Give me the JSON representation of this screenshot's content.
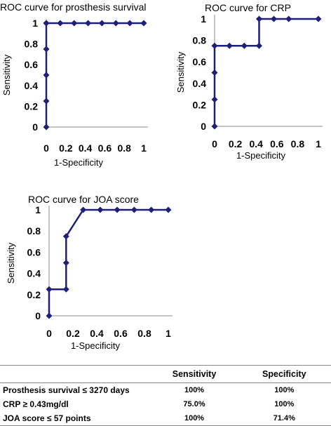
{
  "colors": {
    "series": "#1f1f7a",
    "axis": "#888888"
  },
  "chart_data": [
    {
      "type": "line",
      "title": "ROC curve for prosthesis survival",
      "xlabel": "1-Specificity",
      "ylabel": "Sensitivity",
      "xlim": [
        0,
        1
      ],
      "ylim": [
        0,
        1
      ],
      "xticks": [
        "0",
        "0.2",
        "0.4",
        "0.6",
        "0.8",
        "1"
      ],
      "yticks": [
        "0",
        "0.2",
        "0.4",
        "0.6",
        "0.8",
        "1"
      ],
      "grid": false,
      "series": [
        {
          "x": [
            0,
            0,
            0,
            0,
            0,
            0,
            0.143,
            0.286,
            0.429,
            0.571,
            0.714,
            0.857,
            1
          ],
          "y": [
            0,
            0.25,
            0.5,
            0.75,
            1,
            1,
            1,
            1,
            1,
            1,
            1,
            1,
            1
          ]
        }
      ]
    },
    {
      "type": "line",
      "title": "ROC curve for CRP",
      "xlabel": "1-Specificity",
      "ylabel": "Sensitivity",
      "xlim": [
        0,
        1
      ],
      "ylim": [
        0,
        1
      ],
      "xticks": [
        "0",
        "0.2",
        "0.4",
        "0.6",
        "0.8",
        "1"
      ],
      "yticks": [
        "0",
        "0.2",
        "0.4",
        "0.6",
        "0.8",
        "1"
      ],
      "grid": false,
      "series": [
        {
          "x": [
            0,
            0,
            0,
            0,
            0.143,
            0.286,
            0.429,
            0.429,
            0.571,
            0.714,
            1
          ],
          "y": [
            0,
            0.25,
            0.5,
            0.75,
            0.75,
            0.75,
            0.75,
            1,
            1,
            1,
            1
          ]
        }
      ]
    },
    {
      "type": "line",
      "title": "ROC curve for JOA score",
      "xlabel": "1-Specificity",
      "ylabel": "Sensitivity",
      "xlim": [
        0,
        1
      ],
      "ylim": [
        0,
        1
      ],
      "xticks": [
        "0",
        "0.2",
        "0.4",
        "0.6",
        "0.8",
        "1"
      ],
      "yticks": [
        "0",
        "0.2",
        "0.4",
        "0.6",
        "0.8",
        "1"
      ],
      "grid": false,
      "series": [
        {
          "x": [
            0,
            0,
            0.143,
            0.143,
            0.143,
            0.286,
            0.429,
            0.571,
            0.714,
            0.857,
            1
          ],
          "y": [
            0,
            0.25,
            0.25,
            0.5,
            0.75,
            1,
            1,
            1,
            1,
            1,
            1
          ]
        }
      ]
    }
  ],
  "table": {
    "headers": [
      "",
      "Sensitivity",
      "Specificity"
    ],
    "rows": [
      [
        "Prosthesis survival ≤ 3270 days",
        "100%",
        "100%"
      ],
      [
        "CRP ≥ 0.43mg/dl",
        "75.0%",
        "100%"
      ],
      [
        "JOA score ≤ 57 points",
        "100%",
        "71.4%"
      ]
    ]
  }
}
